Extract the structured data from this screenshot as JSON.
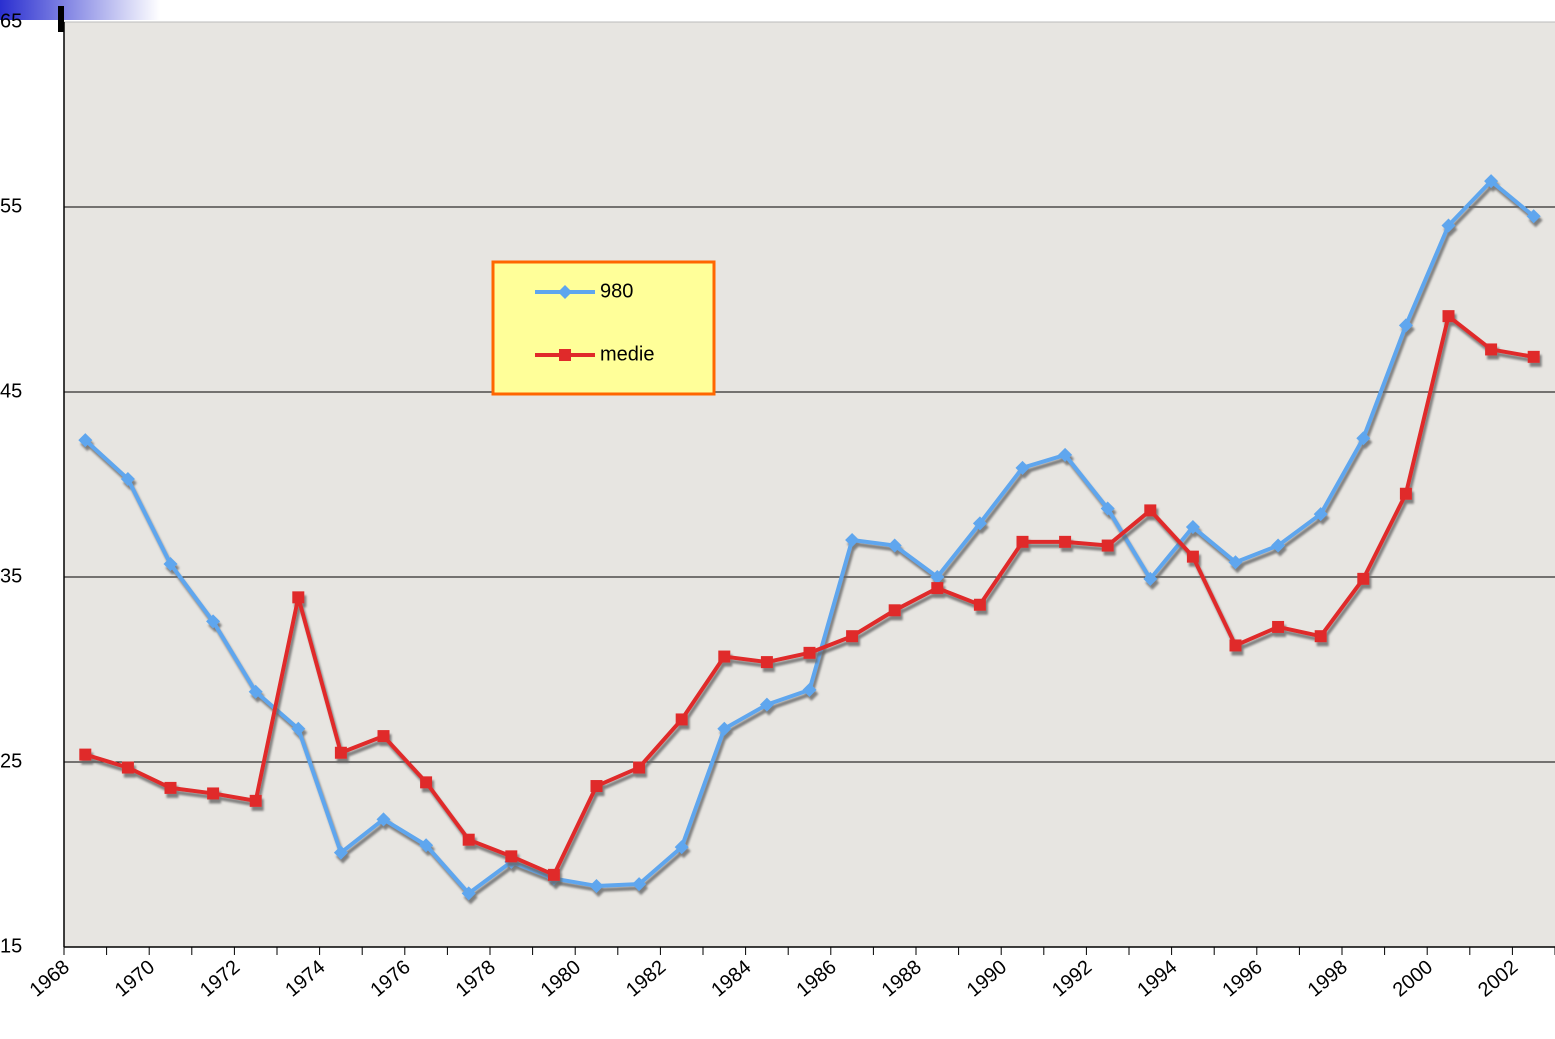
{
  "chart_data": {
    "type": "line",
    "categories": [
      1968,
      null,
      1970,
      null,
      1972,
      null,
      1974,
      null,
      1976,
      null,
      1978,
      null,
      1980,
      null,
      1982,
      null,
      1984,
      null,
      1986,
      null,
      1988,
      null,
      1990,
      null,
      1992,
      null,
      1994,
      null,
      1996,
      null,
      1998,
      null,
      2000,
      null,
      2002
    ],
    "series": [
      {
        "name": "980",
        "color": "#5ea6ee",
        "marker": "diamond",
        "values": [
          42.4,
          40.3,
          35.7,
          32.6,
          28.8,
          26.8,
          20.1,
          21.9,
          20.5,
          17.9,
          19.6,
          18.7,
          18.3,
          18.4,
          20.4,
          26.8,
          28.1,
          28.9,
          37.0,
          36.7,
          35.0,
          37.9,
          40.9,
          41.6,
          38.7,
          34.9,
          37.7,
          35.8,
          36.7,
          38.4,
          42.5,
          48.6,
          54.0,
          56.4,
          54.5
        ]
      },
      {
        "name": "medie",
        "color": "#e02a2a",
        "marker": "square",
        "values": [
          25.4,
          24.7,
          23.6,
          23.3,
          22.9,
          33.9,
          25.5,
          26.4,
          23.9,
          20.8,
          19.9,
          18.9,
          23.7,
          24.7,
          27.3,
          30.7,
          30.4,
          30.9,
          31.8,
          33.2,
          34.4,
          33.5,
          36.9,
          36.9,
          36.7,
          38.6,
          36.1,
          31.3,
          32.3,
          31.8,
          34.9,
          39.5,
          49.1,
          47.3,
          46.9
        ]
      }
    ],
    "ylim": [
      15,
      65
    ],
    "yticks": [
      15,
      25,
      35,
      45,
      55,
      65
    ],
    "grid": true
  }
}
